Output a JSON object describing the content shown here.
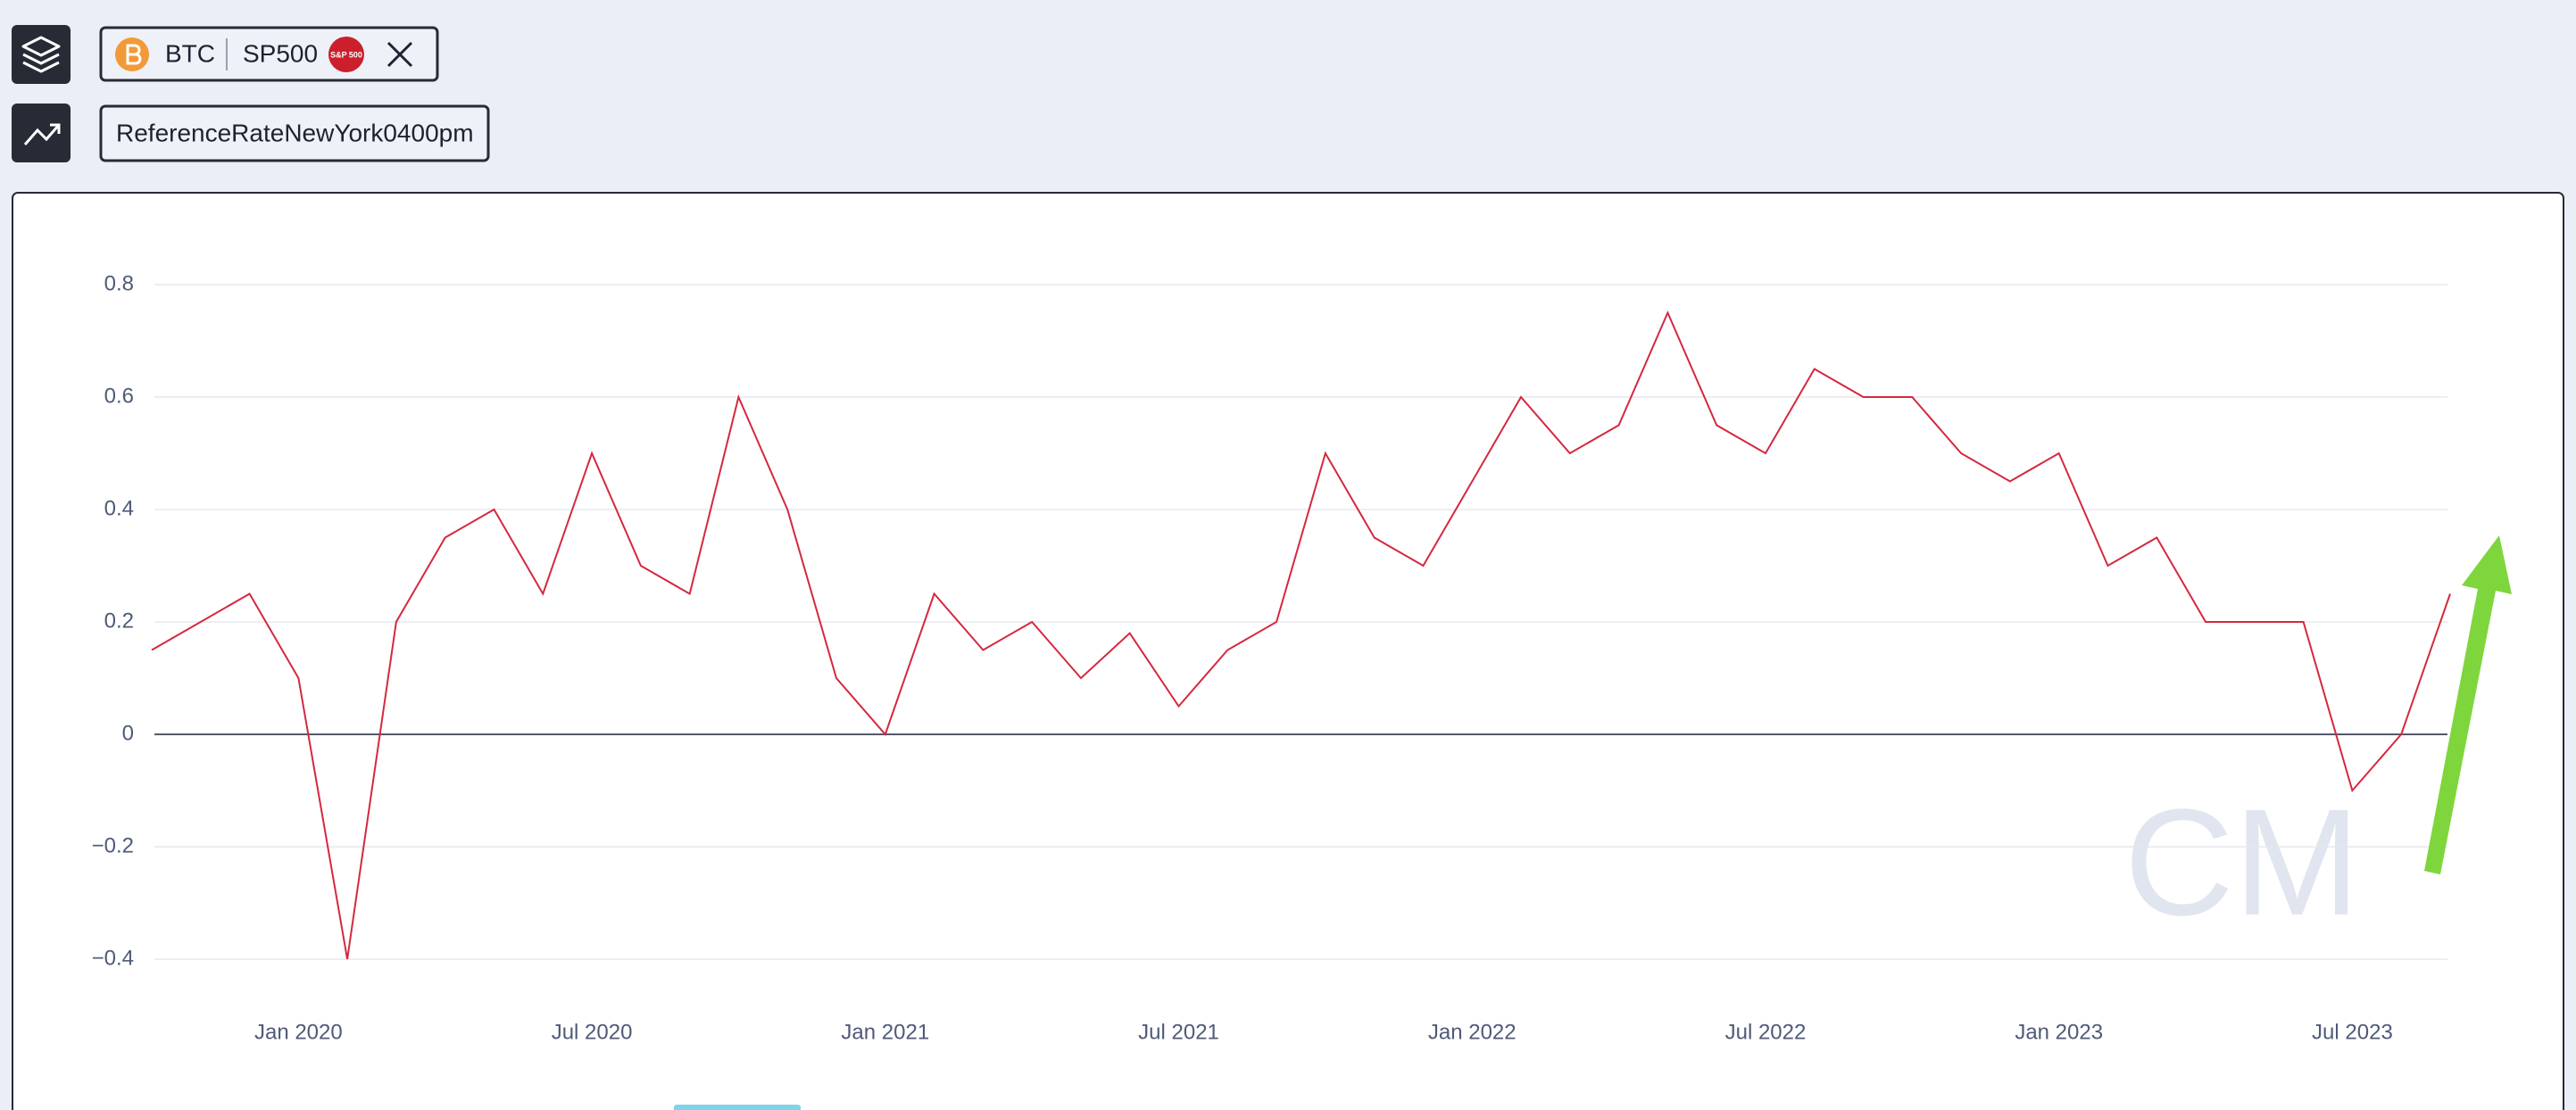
{
  "toolbar": {
    "assets": [
      "BTC",
      "SP500"
    ],
    "sp500_badge": "S&P 500",
    "metric": "ReferenceRateNewYork0400pm"
  },
  "watermark": "CM",
  "chart_data": {
    "type": "line",
    "color": "#d5283f",
    "x": [
      "2019-10",
      "2019-11",
      "2019-12",
      "2020-01",
      "2020-02",
      "2020-03",
      "2020-04",
      "2020-05",
      "2020-06",
      "2020-07",
      "2020-08",
      "2020-09",
      "2020-10",
      "2020-11",
      "2020-12",
      "2021-01",
      "2021-02",
      "2021-03",
      "2021-04",
      "2021-05",
      "2021-06",
      "2021-07",
      "2021-08",
      "2021-09",
      "2021-10",
      "2021-11",
      "2021-12",
      "2022-01",
      "2022-02",
      "2022-03",
      "2022-04",
      "2022-05",
      "2022-06",
      "2022-07",
      "2022-08",
      "2022-09",
      "2022-10",
      "2022-11",
      "2022-12",
      "2023-01",
      "2023-02",
      "2023-03",
      "2023-04",
      "2023-05",
      "2023-06",
      "2023-07",
      "2023-08",
      "2023-09"
    ],
    "values": [
      0.15,
      0.2,
      0.25,
      0.1,
      -0.4,
      0.2,
      0.35,
      0.4,
      0.25,
      0.5,
      0.3,
      0.25,
      0.6,
      0.4,
      0.1,
      0.0,
      0.25,
      0.15,
      0.2,
      0.1,
      0.18,
      0.05,
      0.15,
      0.2,
      0.5,
      0.35,
      0.3,
      0.45,
      0.6,
      0.5,
      0.55,
      0.75,
      0.55,
      0.5,
      0.65,
      0.6,
      0.6,
      0.5,
      0.45,
      0.5,
      0.3,
      0.35,
      0.2,
      0.2,
      0.2,
      -0.1,
      0.0,
      0.25
    ],
    "xlim": [
      "2019-10",
      "2023-09"
    ],
    "xticks": [
      {
        "value": "2020-01",
        "label": "Jan 2020"
      },
      {
        "value": "2020-07",
        "label": "Jul 2020"
      },
      {
        "value": "2021-01",
        "label": "Jan 2021"
      },
      {
        "value": "2021-07",
        "label": "Jul 2021"
      },
      {
        "value": "2022-01",
        "label": "Jan 2022"
      },
      {
        "value": "2022-07",
        "label": "Jul 2022"
      },
      {
        "value": "2023-01",
        "label": "Jan 2023"
      },
      {
        "value": "2023-07",
        "label": "Jul 2023"
      }
    ],
    "ylim": [
      -0.5,
      0.9
    ],
    "yticks": [
      {
        "value": -0.4,
        "label": "−0.4"
      },
      {
        "value": -0.2,
        "label": "−0.2"
      },
      0,
      0.2,
      0.4,
      0.6,
      0.8
    ],
    "grid": true
  }
}
